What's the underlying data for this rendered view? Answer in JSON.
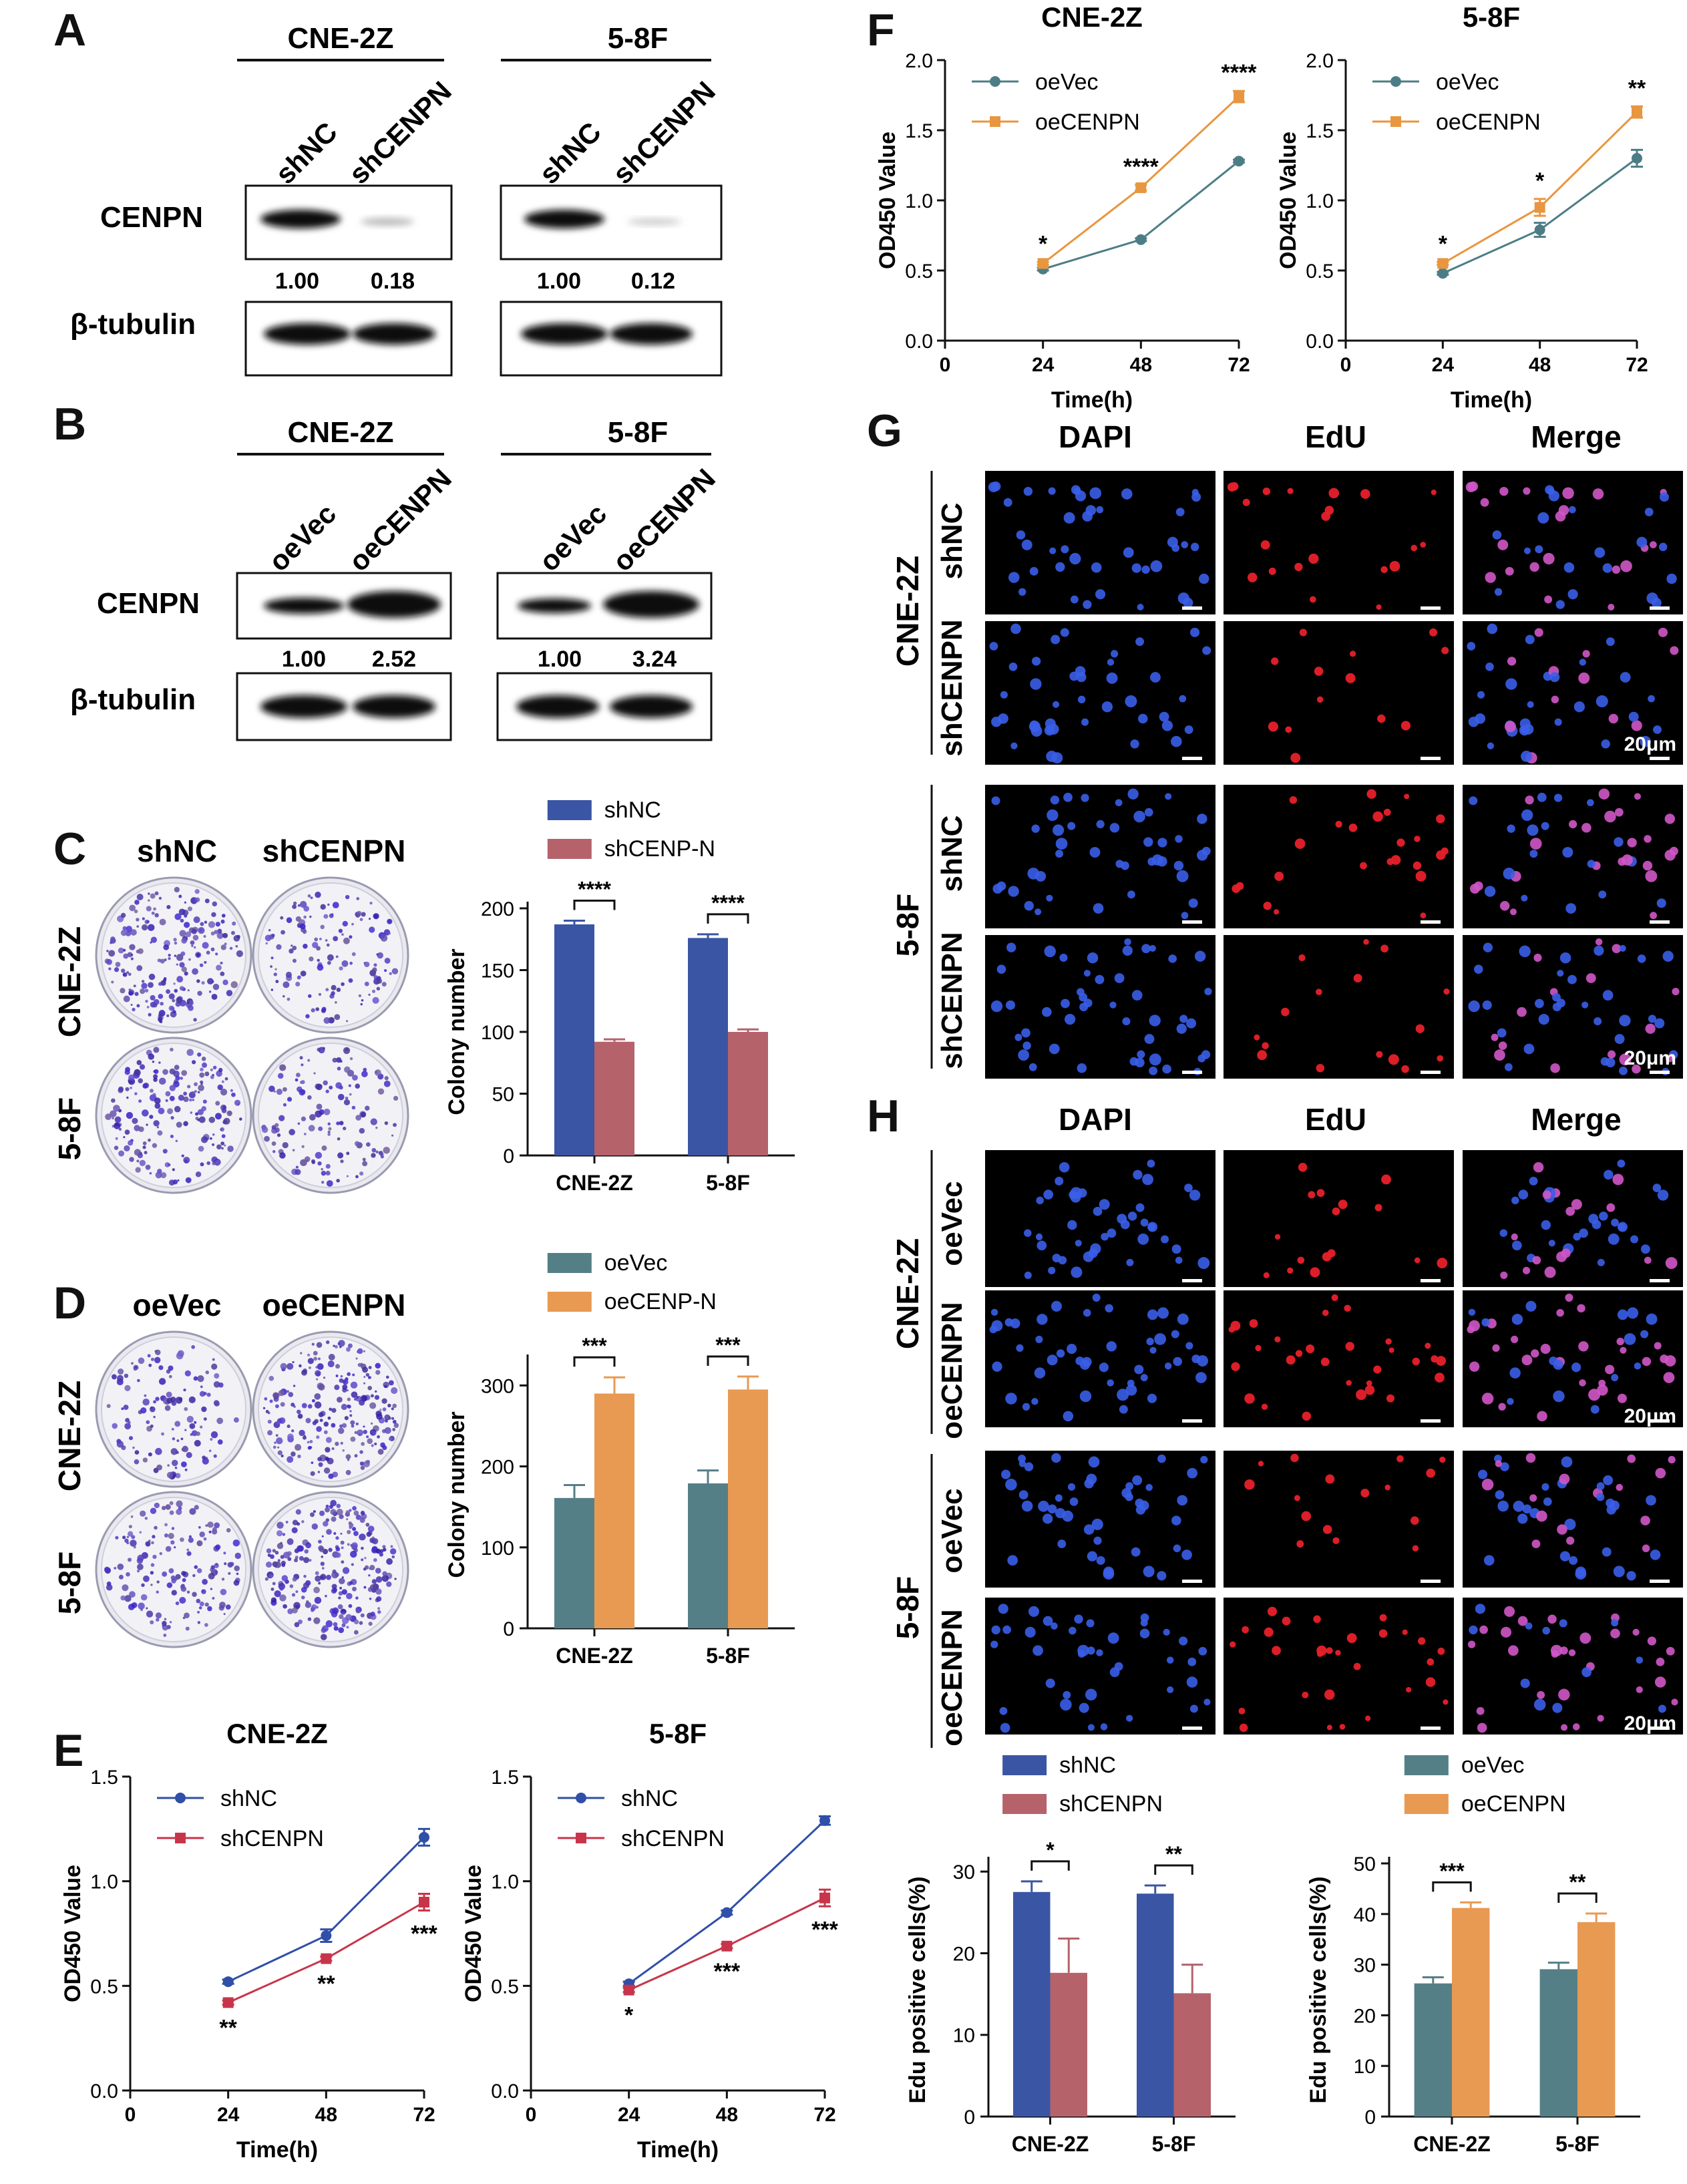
{
  "panels": {
    "A": {
      "label": "A",
      "cells": [
        "CNE-2Z",
        "5-8F"
      ],
      "lanes": [
        [
          "shNC",
          "shCENPN"
        ],
        [
          "shNC",
          "shCENPN"
        ]
      ],
      "rows": [
        "CENPN",
        "β-tubulin"
      ],
      "quant": [
        [
          "1.00",
          "0.18"
        ],
        [
          "1.00",
          "0.12"
        ]
      ]
    },
    "B": {
      "label": "B",
      "cells": [
        "CNE-2Z",
        "5-8F"
      ],
      "lanes": [
        [
          "oeVec",
          "oeCENPN"
        ],
        [
          "oeVec",
          "oeCENPN"
        ]
      ],
      "rows": [
        "CENPN",
        "β-tubulin"
      ],
      "quant": [
        [
          "1.00",
          "2.52"
        ],
        [
          "1.00",
          "3.24"
        ]
      ]
    },
    "C": {
      "label": "C",
      "cols": [
        "shNC",
        "shCENPN"
      ],
      "rows": [
        "CNE-2Z",
        "5-8F"
      ]
    },
    "D": {
      "label": "D",
      "cols": [
        "oeVec",
        "oeCENPN"
      ],
      "rows": [
        "CNE-2Z",
        "5-8F"
      ]
    },
    "E": {
      "label": "E"
    },
    "F": {
      "label": "F"
    },
    "G": {
      "label": "G",
      "cols": [
        "DAPI",
        "EdU",
        "Merge"
      ],
      "groups": [
        "CNE-2Z",
        "5-8F"
      ],
      "rows": [
        "shNC",
        "shCENPN"
      ],
      "scale": "20μm"
    },
    "H": {
      "label": "H",
      "cols": [
        "DAPI",
        "EdU",
        "Merge"
      ],
      "groups": [
        "CNE-2Z",
        "5-8F"
      ],
      "rows": [
        "oeVec",
        "oeCENPN"
      ],
      "scale": "20μm"
    }
  },
  "colors": {
    "shNC": "#3a55a4",
    "shCENPN": "#b5626b",
    "oeVec": "#557f87",
    "oeCENPN": "#e89a52",
    "lineNC": "#2f4fa8",
    "lineKD": "#c8354b",
    "lineVec": "#4c7d86",
    "lineOE": "#e8963f",
    "dapi": "#3a5ee8",
    "edu": "#e8202a",
    "merge": "#d056c8"
  },
  "chart_data": [
    {
      "id": "C-bar",
      "type": "bar",
      "categories": [
        "CNE-2Z",
        "5-8F"
      ],
      "series": [
        {
          "name": "shNC",
          "values": [
            187,
            176
          ],
          "errors": [
            3,
            3
          ]
        },
        {
          "name": "shCENP-N",
          "values": [
            92,
            100
          ],
          "errors": [
            2,
            2
          ]
        }
      ],
      "ylabel": "Colony number",
      "ylim": [
        0,
        200
      ],
      "yticks": [
        0,
        50,
        100,
        150,
        200
      ],
      "sig": [
        "****",
        "****"
      ],
      "legend": "top"
    },
    {
      "id": "D-bar",
      "type": "bar",
      "categories": [
        "CNE-2Z",
        "5-8F"
      ],
      "series": [
        {
          "name": "oeVec",
          "values": [
            161,
            179
          ],
          "errors": [
            16,
            16
          ]
        },
        {
          "name": "oeCENP-N",
          "values": [
            290,
            295
          ],
          "errors": [
            20,
            16
          ]
        }
      ],
      "ylabel": "Colony number",
      "ylim": [
        0,
        330
      ],
      "yticks": [
        0,
        100,
        200,
        300
      ],
      "sig": [
        "***",
        "***"
      ],
      "legend": "top"
    },
    {
      "id": "E-left",
      "type": "line",
      "title": "CNE-2Z",
      "x": [
        24,
        48,
        72
      ],
      "series": [
        {
          "name": "shNC",
          "values": [
            0.52,
            0.74,
            1.21
          ],
          "errors": [
            0.01,
            0.03,
            0.04
          ]
        },
        {
          "name": "shCENPN",
          "values": [
            0.42,
            0.63,
            0.9
          ],
          "errors": [
            0.01,
            0.01,
            0.04
          ]
        }
      ],
      "xlabel": "Time(h)",
      "ylabel": "OD450 Value",
      "xlim": [
        0,
        72
      ],
      "xticks": [
        0,
        24,
        48,
        72
      ],
      "ylim": [
        0,
        1.5
      ],
      "yticks": [
        "0.0",
        "0.5",
        "1.0",
        "1.5"
      ],
      "sig": [
        "**",
        "**",
        "***"
      ],
      "sig_pos": "below"
    },
    {
      "id": "E-right",
      "type": "line",
      "title": "5-8F",
      "x": [
        24,
        48,
        72
      ],
      "series": [
        {
          "name": "shNC",
          "values": [
            0.51,
            0.85,
            1.29
          ],
          "errors": [
            0.01,
            0.01,
            0.02
          ]
        },
        {
          "name": "shCENPN",
          "values": [
            0.48,
            0.69,
            0.92
          ],
          "errors": [
            0.01,
            0.01,
            0.04
          ]
        }
      ],
      "xlabel": "Time(h)",
      "ylabel": "OD450 Value",
      "xlim": [
        0,
        72
      ],
      "xticks": [
        0,
        24,
        48,
        72
      ],
      "ylim": [
        0,
        1.5
      ],
      "yticks": [
        "0.0",
        "0.5",
        "1.0",
        "1.5"
      ],
      "sig": [
        "*",
        "***",
        "***"
      ],
      "sig_pos": "below"
    },
    {
      "id": "F-left",
      "type": "line",
      "title": "CNE-2Z",
      "x": [
        24,
        48,
        72
      ],
      "series": [
        {
          "name": "oeVec",
          "values": [
            0.51,
            0.72,
            1.28
          ],
          "errors": [
            0.01,
            0.01,
            0.01
          ]
        },
        {
          "name": "oeCENPN",
          "values": [
            0.55,
            1.09,
            1.74
          ],
          "errors": [
            0.01,
            0.02,
            0.04
          ]
        }
      ],
      "xlabel": "Time(h)",
      "ylabel": "OD450 Value",
      "xlim": [
        0,
        72
      ],
      "xticks": [
        0,
        24,
        48,
        72
      ],
      "ylim": [
        0,
        2.0
      ],
      "yticks": [
        "0.0",
        "0.5",
        "1.0",
        "1.5",
        "2.0"
      ],
      "sig": [
        "*",
        "****",
        "****"
      ],
      "sig_pos": "above"
    },
    {
      "id": "F-right",
      "type": "line",
      "title": "5-8F",
      "x": [
        24,
        48,
        72
      ],
      "series": [
        {
          "name": "oeVec",
          "values": [
            0.48,
            0.79,
            1.3
          ],
          "errors": [
            0.01,
            0.05,
            0.06
          ]
        },
        {
          "name": "oeCENPN",
          "values": [
            0.55,
            0.95,
            1.63
          ],
          "errors": [
            0.01,
            0.06,
            0.04
          ]
        }
      ],
      "xlabel": "Time(h)",
      "ylabel": "OD450 Value",
      "xlim": [
        0,
        72
      ],
      "xticks": [
        0,
        24,
        48,
        72
      ],
      "ylim": [
        0,
        2.0
      ],
      "yticks": [
        "0.0",
        "0.5",
        "1.0",
        "1.5",
        "2.0"
      ],
      "sig": [
        "*",
        "*",
        "**"
      ],
      "sig_pos": "above"
    },
    {
      "id": "G-bar",
      "type": "bar",
      "categories": [
        "CNE-2Z",
        "5-8F"
      ],
      "series": [
        {
          "name": "shNC",
          "values": [
            27.5,
            27.3
          ],
          "errors": [
            1.3,
            1.0
          ]
        },
        {
          "name": "shCENPN",
          "values": [
            17.6,
            15.1
          ],
          "errors": [
            4.2,
            3.5
          ]
        }
      ],
      "ylabel": "Edu positive cells(%)",
      "ylim": [
        0,
        31
      ],
      "yticks": [
        0,
        10,
        20,
        30
      ],
      "sig": [
        "*",
        "**"
      ],
      "legend": "top"
    },
    {
      "id": "H-bar",
      "type": "bar",
      "categories": [
        "CNE-2Z",
        "5-8F"
      ],
      "series": [
        {
          "name": "oeVec",
          "values": [
            26.3,
            29.1
          ],
          "errors": [
            1.2,
            1.3
          ]
        },
        {
          "name": "oeCENPN",
          "values": [
            41.2,
            38.4
          ],
          "errors": [
            1.1,
            1.7
          ]
        }
      ],
      "ylabel": "Edu positive cells(%)",
      "ylim": [
        0,
        50
      ],
      "yticks": [
        0,
        10,
        20,
        30,
        40,
        50
      ],
      "sig": [
        "***",
        "**"
      ],
      "legend": "top"
    }
  ]
}
